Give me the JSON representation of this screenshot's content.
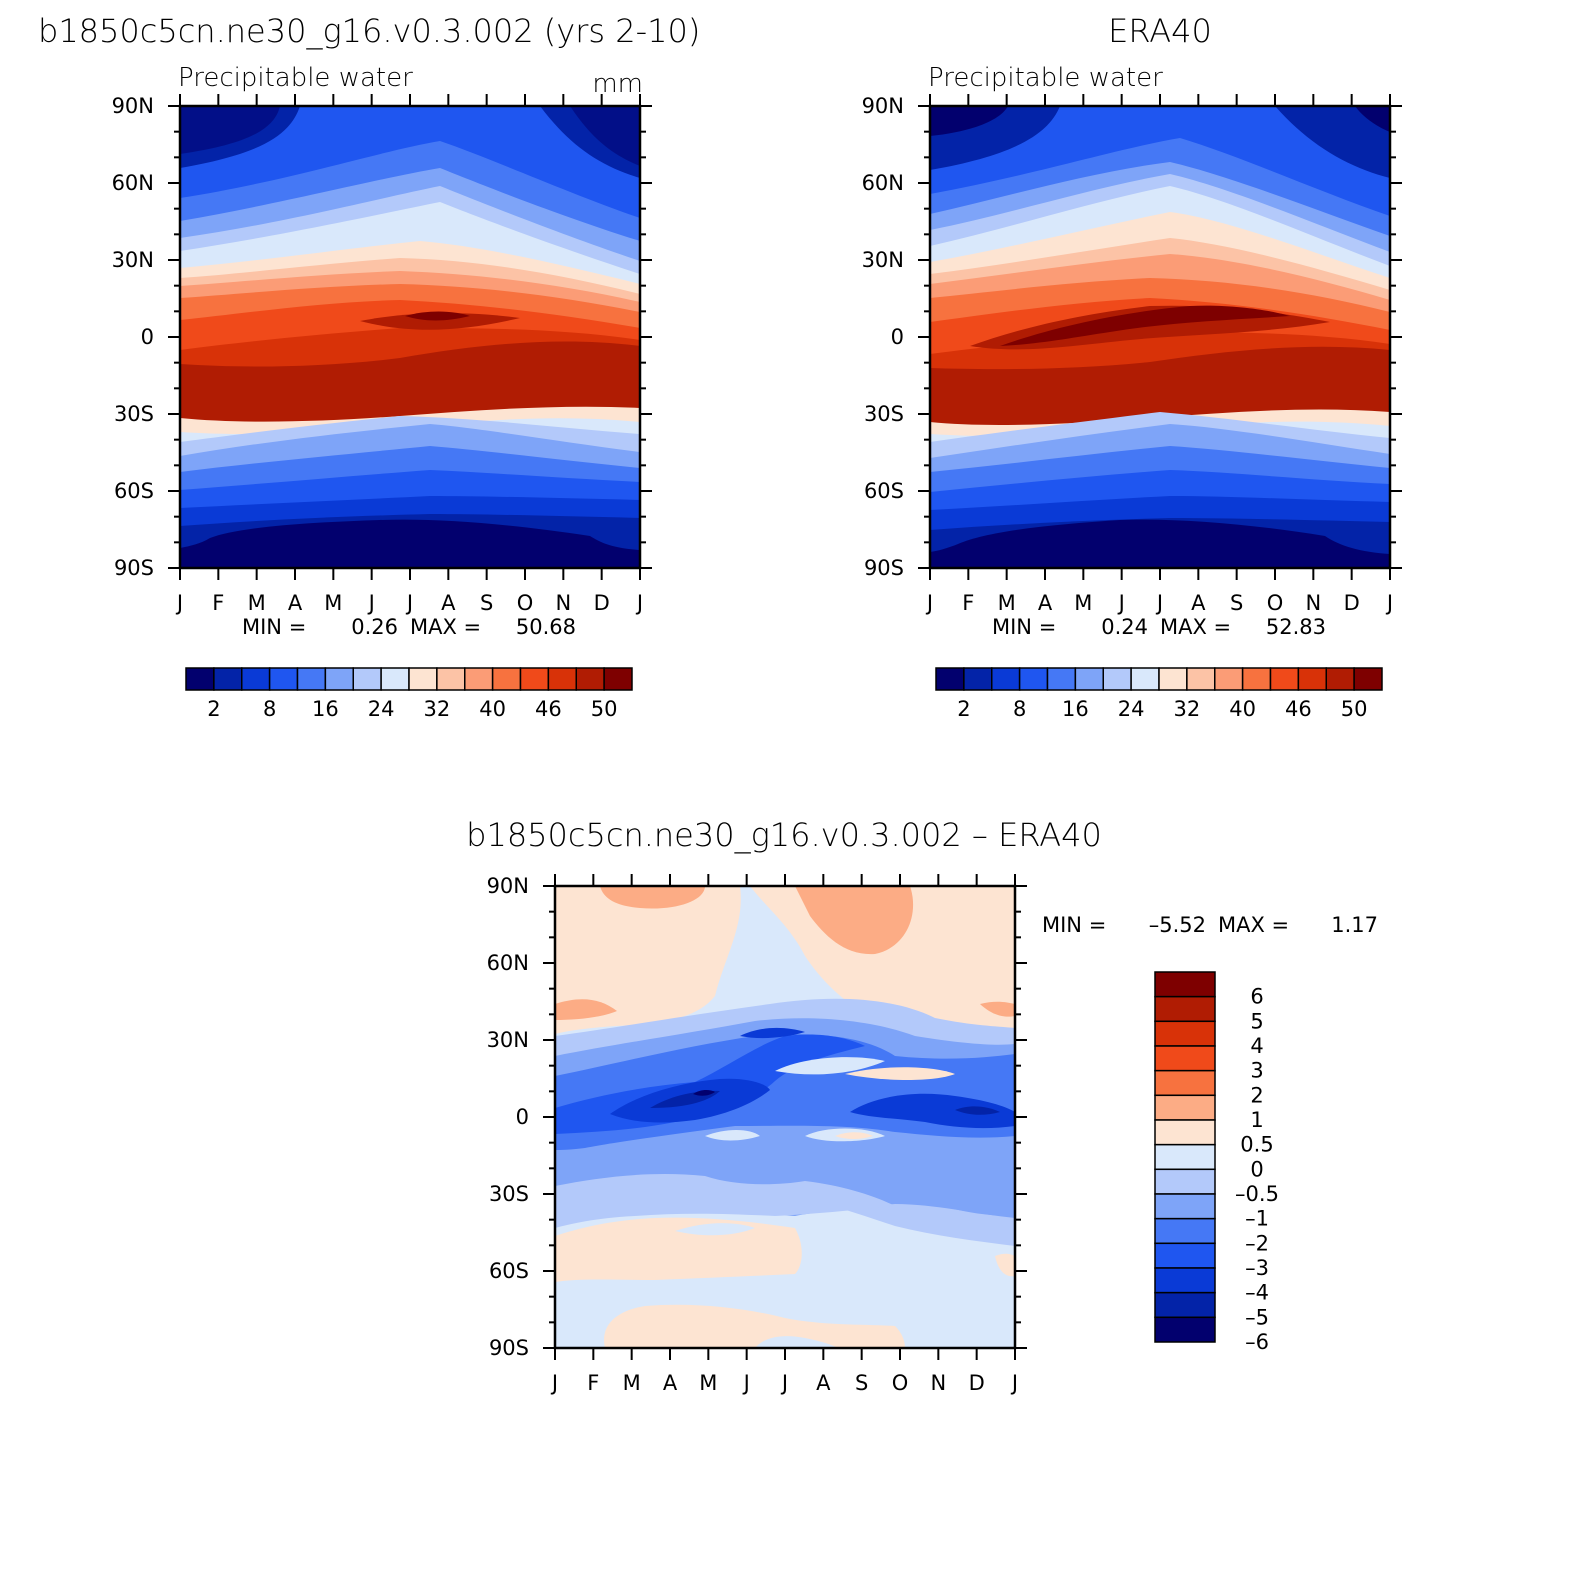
{
  "chart_data": [
    {
      "type": "heatmap",
      "title": "b1850c5cn.ne30_g16.v0.3.002 (yrs 2-10)",
      "subtitle": "Precipitable water",
      "units": "mm",
      "x_ticks": [
        "J",
        "F",
        "M",
        "A",
        "M",
        "J",
        "J",
        "A",
        "S",
        "O",
        "N",
        "D",
        "J"
      ],
      "y_ticks": [
        "90N",
        "60N",
        "30N",
        "0",
        "30S",
        "60S",
        "90S"
      ],
      "min_label": "MIN =",
      "min_value": "0.26",
      "max_label": "MAX =",
      "max_value": "50.68",
      "colorbar_labels": [
        "2",
        "8",
        "16",
        "24",
        "32",
        "40",
        "46",
        "50"
      ],
      "colorbar_colors": [
        "#02006e",
        "#0323a8",
        "#0a3ad6",
        "#1f56f0",
        "#4578f5",
        "#7ea4f8",
        "#b3c9fa",
        "#d9e8fb",
        "#fde4d2",
        "#fcc3a6",
        "#fb9c76",
        "#f7723f",
        "#f04a1a",
        "#d83208",
        "#b01c03",
        "#7e0000"
      ],
      "levels": [
        2,
        4,
        8,
        12,
        16,
        20,
        24,
        28,
        32,
        36,
        40,
        44,
        46,
        48,
        50
      ]
    },
    {
      "type": "heatmap",
      "title": "ERA40",
      "subtitle": "Precipitable water",
      "x_ticks": [
        "J",
        "F",
        "M",
        "A",
        "M",
        "J",
        "J",
        "A",
        "S",
        "O",
        "N",
        "D",
        "J"
      ],
      "y_ticks": [
        "90N",
        "60N",
        "30N",
        "0",
        "30S",
        "60S",
        "90S"
      ],
      "min_label": "MIN =",
      "min_value": "0.24",
      "max_label": "MAX =",
      "max_value": "52.83",
      "colorbar_labels": [
        "2",
        "8",
        "16",
        "24",
        "32",
        "40",
        "46",
        "50"
      ],
      "colorbar_colors": [
        "#02006e",
        "#0323a8",
        "#0a3ad6",
        "#1f56f0",
        "#4578f5",
        "#7ea4f8",
        "#b3c9fa",
        "#d9e8fb",
        "#fde4d2",
        "#fcc3a6",
        "#fb9c76",
        "#f7723f",
        "#f04a1a",
        "#d83208",
        "#b01c03",
        "#7e0000"
      ],
      "levels": [
        2,
        4,
        8,
        12,
        16,
        20,
        24,
        28,
        32,
        36,
        40,
        44,
        46,
        48,
        50
      ]
    },
    {
      "type": "heatmap",
      "title": "b1850c5cn.ne30_g16.v0.3.002 – ERA40",
      "x_ticks": [
        "J",
        "F",
        "M",
        "A",
        "M",
        "J",
        "J",
        "A",
        "S",
        "O",
        "N",
        "D",
        "J"
      ],
      "y_ticks": [
        "90N",
        "60N",
        "30N",
        "0",
        "30S",
        "60S",
        "90S"
      ],
      "min_label": "MIN =",
      "min_value": "–5.52",
      "max_label": "MAX =",
      "max_value": "1.17",
      "colorbar_labels": [
        "6",
        "5",
        "4",
        "3",
        "2",
        "1",
        "0.5",
        "0",
        "–0.5",
        "–1",
        "–2",
        "–3",
        "–4",
        "–5",
        "–6"
      ],
      "colorbar_colors": [
        "#7e0000",
        "#b01c03",
        "#d83208",
        "#f04a1a",
        "#f7723f",
        "#fcac85",
        "#fde4d2",
        "#d9e8fb",
        "#b3c9fa",
        "#7ea4f8",
        "#4578f5",
        "#1f56f0",
        "#0a3ad6",
        "#0323a8",
        "#02006e"
      ],
      "levels": [
        -6,
        -5,
        -4,
        -3,
        -2,
        -1,
        -0.5,
        0,
        0.5,
        1,
        2,
        3,
        4,
        5,
        6
      ]
    }
  ]
}
